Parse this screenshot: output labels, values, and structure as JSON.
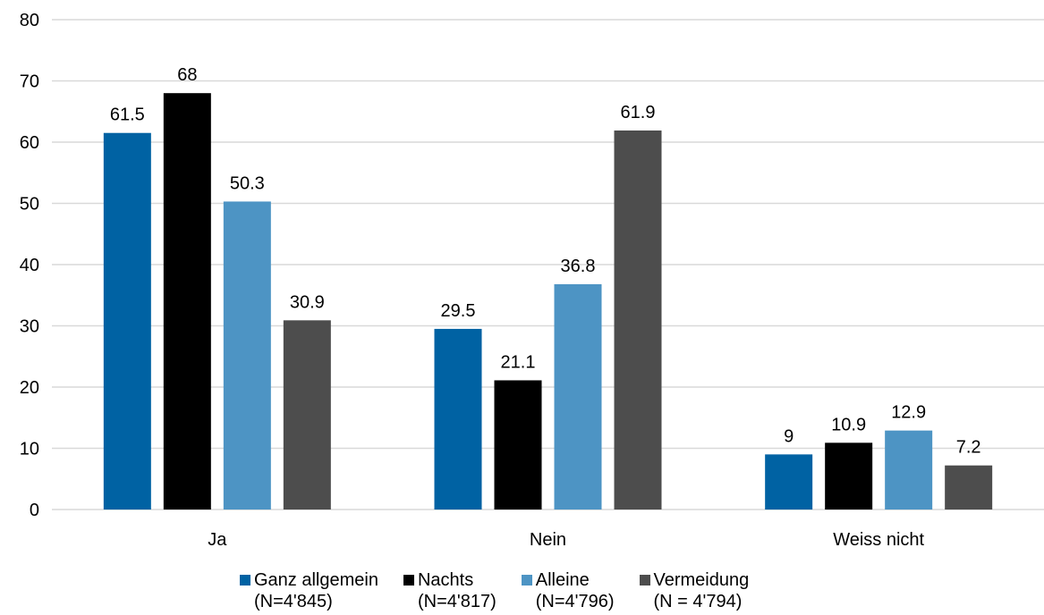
{
  "chart_data": {
    "type": "bar",
    "title": "",
    "xlabel": "",
    "ylabel": "",
    "ylim": [
      0,
      80
    ],
    "yticks": [
      0,
      10,
      20,
      30,
      40,
      50,
      60,
      70,
      80
    ],
    "grid": true,
    "legend_position": "bottom",
    "categories": [
      "Ja",
      "Nein",
      "Weiss nicht"
    ],
    "series": [
      {
        "name": "Ganz allgemein",
        "note": "(N=4'845)",
        "color": "#0062A3",
        "values": [
          61.5,
          29.5,
          9
        ]
      },
      {
        "name": "Nachts",
        "note": "(N=4'817)",
        "color": "#000000",
        "values": [
          68,
          21.1,
          10.9
        ]
      },
      {
        "name": "Alleine",
        "note": "(N=4'796)",
        "color": "#4D94C4",
        "values": [
          50.3,
          36.8,
          12.9
        ]
      },
      {
        "name": "Vermeidung",
        "note": "(N = 4'794)",
        "color": "#4D4D4D",
        "values": [
          30.9,
          61.9,
          7.2
        ]
      }
    ]
  }
}
